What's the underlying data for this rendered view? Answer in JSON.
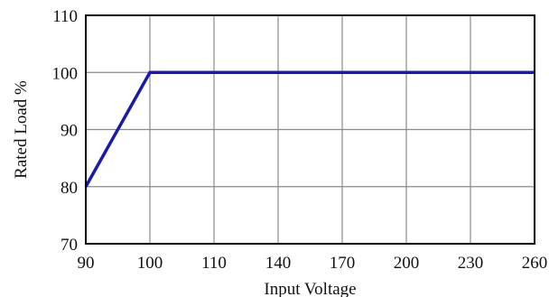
{
  "chart_data": {
    "type": "line",
    "xlabel": "Input Voltage",
    "ylabel": "Rated Load %",
    "categories": [
      "90",
      "100",
      "110",
      "140",
      "170",
      "200",
      "230",
      "260"
    ],
    "ylim": [
      70,
      110
    ],
    "yticks": [
      70,
      80,
      90,
      100,
      110
    ],
    "grid": true,
    "series": [
      {
        "color": "#1a1aaa",
        "points": [
          {
            "x": "90",
            "y": 80
          },
          {
            "x": "100",
            "y": 100
          },
          {
            "x": "260",
            "y": 100
          }
        ]
      }
    ]
  }
}
